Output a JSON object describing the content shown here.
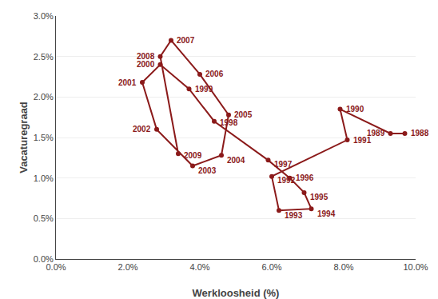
{
  "chart_data": {
    "type": "scatter",
    "xlabel": "Werkloosheid (%)",
    "ylabel": "Vacaturegraad",
    "x": [
      9.7,
      9.3,
      7.9,
      8.1,
      6.0,
      6.2,
      7.1,
      6.9,
      6.5,
      5.9,
      4.4,
      3.7,
      2.9,
      2.4,
      2.8,
      3.8,
      4.6,
      4.8,
      4.0,
      3.2,
      2.9,
      3.4
    ],
    "values": [
      1.55,
      1.55,
      1.85,
      1.47,
      1.02,
      0.6,
      0.62,
      0.82,
      1.0,
      1.22,
      1.7,
      2.1,
      2.4,
      2.18,
      1.6,
      1.15,
      1.28,
      1.78,
      2.28,
      2.7,
      2.5,
      1.3
    ],
    "annotations": [
      {
        "text": "1988",
        "x": 9.7,
        "y": 1.55
      },
      {
        "text": "1989",
        "x": 9.3,
        "y": 1.55
      },
      {
        "text": "1990",
        "x": 7.9,
        "y": 1.85
      },
      {
        "text": "1991",
        "x": 8.1,
        "y": 1.47
      },
      {
        "text": "1992",
        "x": 6.0,
        "y": 1.02
      },
      {
        "text": "1993",
        "x": 6.2,
        "y": 0.6
      },
      {
        "text": "1994",
        "x": 7.1,
        "y": 0.62
      },
      {
        "text": "1995",
        "x": 6.9,
        "y": 0.82
      },
      {
        "text": "1996",
        "x": 6.5,
        "y": 1.0
      },
      {
        "text": "1997",
        "x": 5.9,
        "y": 1.22
      },
      {
        "text": "1998",
        "x": 4.4,
        "y": 1.7
      },
      {
        "text": "1999",
        "x": 3.7,
        "y": 2.1
      },
      {
        "text": "2000",
        "x": 2.9,
        "y": 2.4
      },
      {
        "text": "2001",
        "x": 2.4,
        "y": 2.18
      },
      {
        "text": "2002",
        "x": 2.8,
        "y": 1.6
      },
      {
        "text": "2003",
        "x": 3.8,
        "y": 1.15
      },
      {
        "text": "2004",
        "x": 4.6,
        "y": 1.28
      },
      {
        "text": "2005",
        "x": 4.8,
        "y": 1.78
      },
      {
        "text": "2006",
        "x": 4.0,
        "y": 2.28
      },
      {
        "text": "2007",
        "x": 3.2,
        "y": 2.7
      },
      {
        "text": "2008",
        "x": 2.9,
        "y": 2.5
      },
      {
        "text": "2009",
        "x": 3.4,
        "y": 1.3
      }
    ],
    "color": "#8B1A1A",
    "marker": "circle",
    "line_style": "solid",
    "xlim": [
      0.0,
      10.0
    ],
    "ylim": [
      0.0,
      3.0
    ],
    "xticks": [
      {
        "value": 0,
        "label": "0.0%"
      },
      {
        "value": 2,
        "label": "2.0%"
      },
      {
        "value": 4,
        "label": "4.0%"
      },
      {
        "value": 6,
        "label": "6.0%"
      },
      {
        "value": 8,
        "label": "8.0%"
      },
      {
        "value": 10,
        "label": "10.0%"
      }
    ],
    "yticks": [
      {
        "value": 0,
        "label": "0.0%"
      },
      {
        "value": 0.5,
        "label": "0.5%"
      },
      {
        "value": 1.0,
        "label": "1.0%"
      },
      {
        "value": 1.5,
        "label": "1.5%"
      },
      {
        "value": 2.0,
        "label": "2.0%"
      },
      {
        "value": 2.5,
        "label": "2.5%"
      },
      {
        "value": 3.0,
        "label": "3.0%"
      }
    ],
    "grid": "y"
  }
}
